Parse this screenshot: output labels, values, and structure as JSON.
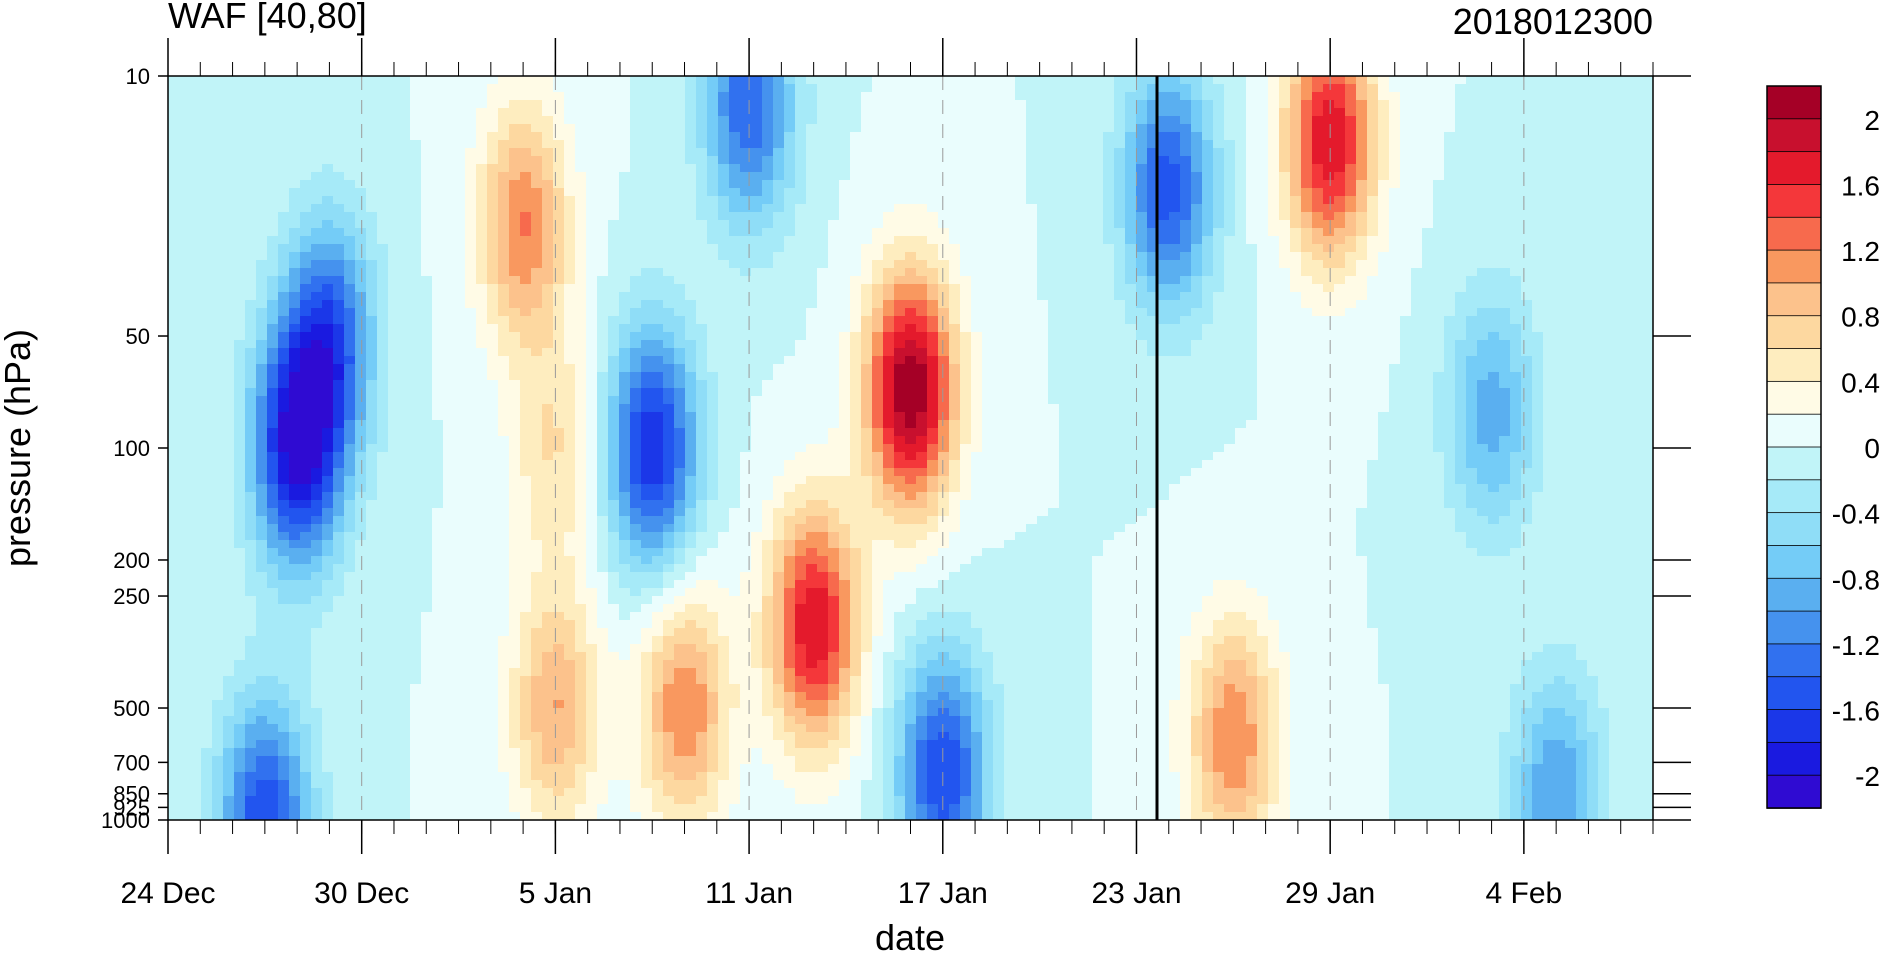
{
  "chart_data": {
    "type": "heatmap",
    "title_left": "WAF [40,80]",
    "title_right": "2018012300",
    "xlabel": "date",
    "ylabel": "pressure (hPa)",
    "x_ticks": [
      "24 Dec",
      "30 Dec",
      "5 Jan",
      "11 Jan",
      "17 Jan",
      "23 Jan",
      "29 Jan",
      "4 Feb"
    ],
    "x_tick_dates": [
      "2017-12-24",
      "2017-12-30",
      "2018-01-05",
      "2018-01-11",
      "2018-01-17",
      "2018-01-23",
      "2018-01-29",
      "2018-02-04"
    ],
    "x_range": [
      "2017-12-24",
      "2018-02-08"
    ],
    "y_scale": "log",
    "y_range": [
      1000,
      10
    ],
    "y_ticks": [
      "10",
      "50",
      "100",
      "200",
      "250",
      "500",
      "700",
      "850",
      "925",
      "1000"
    ],
    "y_tick_values": [
      10,
      50,
      100,
      200,
      250,
      500,
      700,
      850,
      925,
      1000
    ],
    "vertical_marker": "2018-01-23",
    "colorbar": {
      "labels": [
        "2",
        "1.6",
        "1.2",
        "0.8",
        "0.4",
        "0",
        "-0.4",
        "-0.8",
        "-1.2",
        "-1.6",
        "-2"
      ],
      "label_values": [
        2,
        1.6,
        1.2,
        0.8,
        0.4,
        0,
        -0.4,
        -0.8,
        -1.2,
        -1.6,
        -2
      ],
      "levels": [
        -2.2,
        -2.0,
        -1.8,
        -1.6,
        -1.4,
        -1.2,
        -1.0,
        -0.8,
        -0.6,
        -0.4,
        -0.2,
        0,
        0.2,
        0.4,
        0.6,
        0.8,
        1.0,
        1.2,
        1.4,
        1.6,
        1.8,
        2.0,
        2.2
      ],
      "colors": [
        "#a50026",
        "#c8102e",
        "#e41a2c",
        "#f4373a",
        "#f76a4d",
        "#f9985f",
        "#fcc28c",
        "#fdd8a0",
        "#feedbf",
        "#fffbe6",
        "#eafdfd",
        "#c1f4f8",
        "#a6eaf8",
        "#8fddf7",
        "#74ccf7",
        "#5aaff0",
        "#4592ee",
        "#3171ef",
        "#2255ef",
        "#1b37e8",
        "#1a1ae0",
        "#2f0bd2"
      ]
    },
    "features": [
      {
        "label": "neg",
        "date": "2017-12-28",
        "pressure": 100,
        "value": -2.0
      },
      {
        "label": "neg",
        "date": "2017-12-29",
        "pressure": 50,
        "value": -1.4
      },
      {
        "label": "neg",
        "date": "2017-12-27",
        "pressure": 1000,
        "value": -1.6
      },
      {
        "label": "pos",
        "date": "2018-01-04",
        "pressure": 25,
        "value": 1.2
      },
      {
        "label": "pos",
        "date": "2018-01-05",
        "pressure": 100,
        "value": 0.6
      },
      {
        "label": "neg",
        "date": "2018-01-08",
        "pressure": 100,
        "value": -1.8
      },
      {
        "label": "neg",
        "date": "2018-01-11",
        "pressure": 12,
        "value": -1.4
      },
      {
        "label": "pos",
        "date": "2018-01-09",
        "pressure": 500,
        "value": 1.2
      },
      {
        "label": "pos",
        "date": "2018-01-05",
        "pressure": 500,
        "value": 1.0
      },
      {
        "label": "pos",
        "date": "2018-01-16",
        "pressure": 70,
        "value": 2.2
      },
      {
        "label": "pos",
        "date": "2018-01-13",
        "pressure": 300,
        "value": 1.8
      },
      {
        "label": "neg",
        "date": "2018-01-17",
        "pressure": 750,
        "value": -1.6
      },
      {
        "label": "neg",
        "date": "2018-01-24",
        "pressure": 20,
        "value": -1.5
      },
      {
        "label": "pos",
        "date": "2018-01-26",
        "pressure": 600,
        "value": 1.2
      },
      {
        "label": "pos",
        "date": "2018-01-29",
        "pressure": 15,
        "value": 1.8
      },
      {
        "label": "neg",
        "date": "2018-02-03",
        "pressure": 80,
        "value": -0.9
      },
      {
        "label": "neg",
        "date": "2018-02-05",
        "pressure": 850,
        "value": -1.0
      }
    ]
  }
}
